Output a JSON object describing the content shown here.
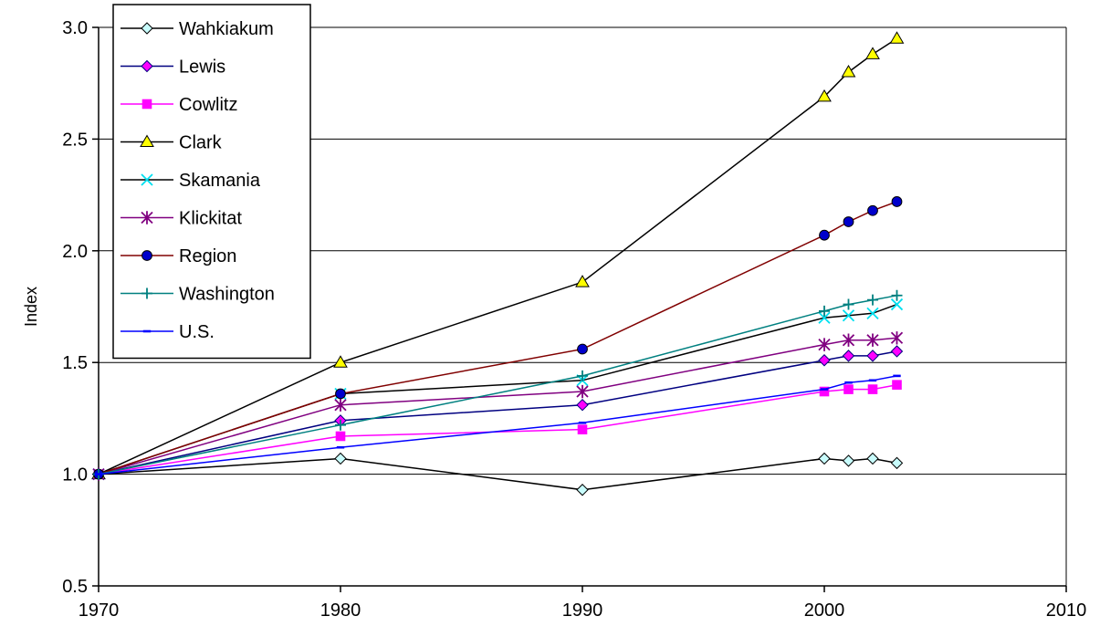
{
  "chart_data": {
    "type": "line",
    "title": "",
    "xlabel": "",
    "ylabel": "Index",
    "xlim": [
      1970,
      2010
    ],
    "ylim": [
      0.5,
      3.0
    ],
    "x_ticks": [
      1970,
      1980,
      1990,
      2000,
      2010
    ],
    "y_ticks": [
      0.5,
      1.0,
      1.5,
      2.0,
      2.5,
      3.0
    ],
    "y_tick_labels": [
      "0.5",
      "1.0",
      "1.5",
      "2.0",
      "2.5",
      "3.0"
    ],
    "grid": "horizontal",
    "legend_position": "top-left",
    "series": [
      {
        "name": "Wahkiakum",
        "line_color": "#000000",
        "marker": "diamond",
        "marker_fill": "#c8fcfc",
        "marker_stroke": "#000000",
        "points": [
          [
            1970,
            1.0
          ],
          [
            1980,
            1.07
          ],
          [
            1990,
            0.93
          ],
          [
            2000,
            1.07
          ],
          [
            2001,
            1.06
          ],
          [
            2002,
            1.07
          ],
          [
            2003,
            1.05
          ]
        ]
      },
      {
        "name": "Lewis",
        "line_color": "#000080",
        "marker": "diamond",
        "marker_fill": "#ff00ff",
        "marker_stroke": "#000080",
        "points": [
          [
            1970,
            1.0
          ],
          [
            1980,
            1.24
          ],
          [
            1990,
            1.31
          ],
          [
            2000,
            1.51
          ],
          [
            2001,
            1.53
          ],
          [
            2002,
            1.53
          ],
          [
            2003,
            1.55
          ]
        ]
      },
      {
        "name": "Cowlitz",
        "line_color": "#ff00ff",
        "marker": "square",
        "marker_fill": "#ff00ff",
        "marker_stroke": "#ff00ff",
        "points": [
          [
            1970,
            1.0
          ],
          [
            1980,
            1.17
          ],
          [
            1990,
            1.2
          ],
          [
            2000,
            1.37
          ],
          [
            2001,
            1.38
          ],
          [
            2002,
            1.38
          ],
          [
            2003,
            1.4
          ]
        ]
      },
      {
        "name": "Clark",
        "line_color": "#000000",
        "marker": "triangle",
        "marker_fill": "#ffff00",
        "marker_stroke": "#000000",
        "points": [
          [
            1970,
            1.0
          ],
          [
            1980,
            1.5
          ],
          [
            1990,
            1.86
          ],
          [
            2000,
            2.69
          ],
          [
            2001,
            2.8
          ],
          [
            2002,
            2.88
          ],
          [
            2003,
            2.95
          ]
        ]
      },
      {
        "name": "Skamania",
        "line_color": "#000000",
        "marker": "x",
        "marker_fill": "none",
        "marker_stroke": "#00e0f0",
        "points": [
          [
            1970,
            1.0
          ],
          [
            1980,
            1.36
          ],
          [
            1990,
            1.42
          ],
          [
            2000,
            1.7
          ],
          [
            2001,
            1.71
          ],
          [
            2002,
            1.72
          ],
          [
            2003,
            1.76
          ]
        ]
      },
      {
        "name": "Klickitat",
        "line_color": "#800080",
        "marker": "star",
        "marker_fill": "none",
        "marker_stroke": "#800080",
        "points": [
          [
            1970,
            1.0
          ],
          [
            1980,
            1.31
          ],
          [
            1990,
            1.37
          ],
          [
            2000,
            1.58
          ],
          [
            2001,
            1.6
          ],
          [
            2002,
            1.6
          ],
          [
            2003,
            1.61
          ]
        ]
      },
      {
        "name": "Region",
        "line_color": "#800000",
        "marker": "circle",
        "marker_fill": "#0000cc",
        "marker_stroke": "#000000",
        "points": [
          [
            1970,
            1.0
          ],
          [
            1980,
            1.36
          ],
          [
            1990,
            1.56
          ],
          [
            2000,
            2.07
          ],
          [
            2001,
            2.13
          ],
          [
            2002,
            2.18
          ],
          [
            2003,
            2.22
          ]
        ]
      },
      {
        "name": "Washington",
        "line_color": "#008080",
        "marker": "plus",
        "marker_fill": "none",
        "marker_stroke": "#008080",
        "points": [
          [
            1970,
            1.0
          ],
          [
            1980,
            1.22
          ],
          [
            1990,
            1.44
          ],
          [
            2000,
            1.73
          ],
          [
            2001,
            1.76
          ],
          [
            2002,
            1.78
          ],
          [
            2003,
            1.8
          ]
        ]
      },
      {
        "name": "U.S.",
        "line_color": "#0000ff",
        "marker": "dash",
        "marker_fill": "none",
        "marker_stroke": "#0000ff",
        "points": [
          [
            1970,
            1.0
          ],
          [
            1980,
            1.12
          ],
          [
            1990,
            1.23
          ],
          [
            2000,
            1.38
          ],
          [
            2001,
            1.41
          ],
          [
            2002,
            1.42
          ],
          [
            2003,
            1.44
          ]
        ]
      }
    ]
  }
}
